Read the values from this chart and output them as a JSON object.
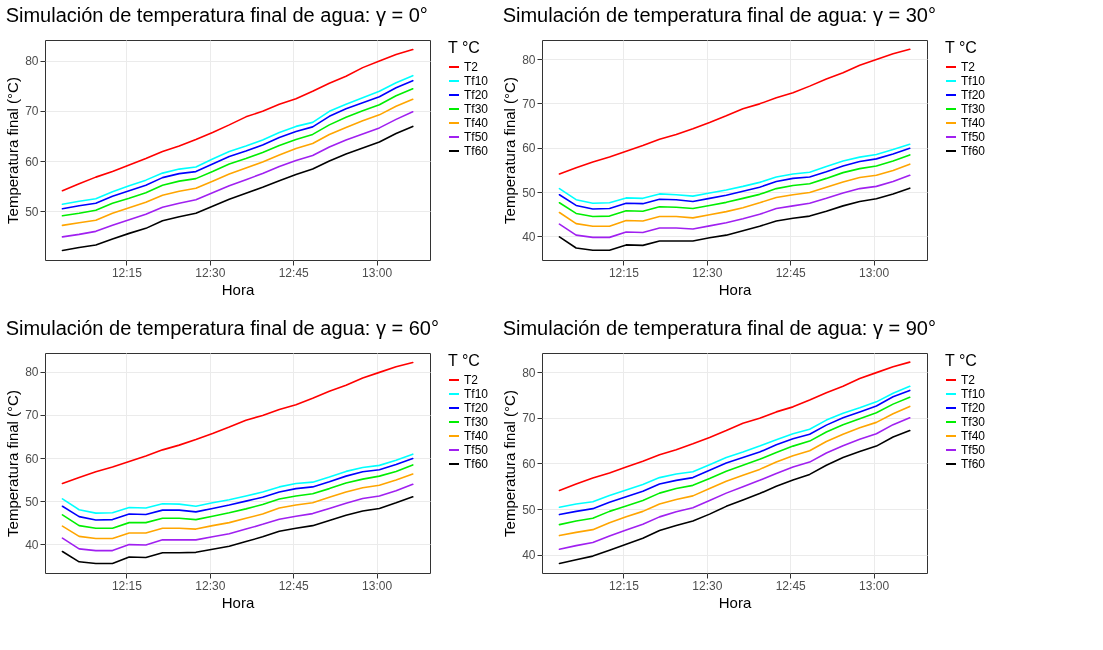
{
  "chart_data": [
    {
      "type": "line",
      "title": "Simulación de temperatura final de agua:  γ = 0°",
      "xlabel": "Hora",
      "ylabel": "Temperatura final (°C)",
      "legend_title": "T °C",
      "grid": true,
      "legend": "right",
      "x": [
        12.0583,
        12.1083,
        12.1583,
        12.2083,
        12.2583,
        12.3083,
        12.3583,
        12.4083,
        12.4583,
        12.5083,
        12.5583,
        12.6083,
        12.6583,
        12.7083,
        12.7583,
        12.8083,
        12.8583,
        12.9083,
        12.9583,
        13.0083,
        13.0583,
        13.1083
      ],
      "xlim": [
        12.006,
        13.16
      ],
      "xticks": [
        {
          "value": 12.25,
          "label": "12:15"
        },
        {
          "value": 12.5,
          "label": "12:30"
        },
        {
          "value": 12.75,
          "label": "12:45"
        },
        {
          "value": 13.0,
          "label": "13:00"
        }
      ],
      "ylim": [
        40.3,
        84.1
      ],
      "yticks": [
        50,
        60,
        70,
        80
      ],
      "series": [
        {
          "name": "T2",
          "color": "#ff0000",
          "values": [
            54.1,
            55.5,
            56.8,
            57.9,
            59.2,
            60.5,
            61.9,
            63.0,
            64.3,
            65.7,
            67.2,
            68.8,
            69.9,
            71.3,
            72.4,
            73.9,
            75.5,
            76.9,
            78.6,
            79.9,
            81.2,
            82.2
          ]
        },
        {
          "name": "Tf10",
          "color": "#00ffff",
          "values": [
            51.4,
            52.0,
            52.5,
            53.9,
            55.1,
            56.2,
            57.6,
            58.4,
            58.8,
            60.4,
            61.9,
            63.0,
            64.2,
            65.7,
            66.9,
            67.7,
            69.9,
            71.3,
            72.6,
            73.9,
            75.6,
            77.0
          ]
        },
        {
          "name": "Tf20",
          "color": "#0000ff",
          "values": [
            50.5,
            51.1,
            51.6,
            53.0,
            54.1,
            55.2,
            56.7,
            57.5,
            57.9,
            59.4,
            60.9,
            62.0,
            63.2,
            64.7,
            65.9,
            66.8,
            68.9,
            70.4,
            71.6,
            72.8,
            74.6,
            76.0
          ]
        },
        {
          "name": "Tf30",
          "color": "#00ee00",
          "values": [
            49.1,
            49.6,
            50.2,
            51.6,
            52.6,
            53.7,
            55.2,
            56.0,
            56.5,
            57.9,
            59.4,
            60.5,
            61.7,
            63.1,
            64.3,
            65.3,
            67.2,
            68.7,
            70.0,
            71.2,
            73.0,
            74.4
          ]
        },
        {
          "name": "Tf40",
          "color": "#ffa500",
          "values": [
            47.2,
            47.7,
            48.2,
            49.6,
            50.7,
            51.8,
            53.2,
            54.0,
            54.6,
            56.0,
            57.4,
            58.6,
            59.8,
            61.2,
            62.5,
            63.5,
            65.3,
            66.7,
            68.0,
            69.2,
            70.9,
            72.3
          ]
        },
        {
          "name": "Tf50",
          "color": "#a020f0",
          "values": [
            44.9,
            45.4,
            46.0,
            47.2,
            48.3,
            49.4,
            50.8,
            51.6,
            52.3,
            53.7,
            55.1,
            56.3,
            57.5,
            58.9,
            60.1,
            61.1,
            62.8,
            64.2,
            65.4,
            66.6,
            68.3,
            69.8
          ]
        },
        {
          "name": "Tf60",
          "color": "#000000",
          "values": [
            42.2,
            42.8,
            43.3,
            44.5,
            45.6,
            46.6,
            48.1,
            48.9,
            49.6,
            51.0,
            52.4,
            53.6,
            54.8,
            56.1,
            57.3,
            58.4,
            60.0,
            61.4,
            62.6,
            63.8,
            65.5,
            66.9
          ]
        }
      ]
    },
    {
      "type": "line",
      "title": "Simulación de temperatura final de agua:  γ = 30°",
      "xlabel": "Hora",
      "ylabel": "Temperatura final (°C)",
      "legend_title": "T °C",
      "grid": true,
      "legend": "right",
      "x": [
        12.0583,
        12.1083,
        12.1583,
        12.2083,
        12.2583,
        12.3083,
        12.3583,
        12.4083,
        12.4583,
        12.5083,
        12.5583,
        12.6083,
        12.6583,
        12.7083,
        12.7583,
        12.8083,
        12.8583,
        12.9083,
        12.9583,
        13.0083,
        13.0583,
        13.1083
      ],
      "xlim": [
        12.006,
        13.16
      ],
      "xticks": [
        {
          "value": 12.25,
          "label": "12:15"
        },
        {
          "value": 12.5,
          "label": "12:30"
        },
        {
          "value": 12.75,
          "label": "12:45"
        },
        {
          "value": 13.0,
          "label": "13:00"
        }
      ],
      "ylim": [
        34.7,
        84.3
      ],
      "yticks": [
        40,
        50,
        60,
        70,
        80
      ],
      "series": [
        {
          "name": "T2",
          "color": "#ff0000",
          "values": [
            54.1,
            55.5,
            56.8,
            57.9,
            59.2,
            60.5,
            61.9,
            63.0,
            64.3,
            65.7,
            67.2,
            68.8,
            69.9,
            71.3,
            72.4,
            73.9,
            75.5,
            76.9,
            78.6,
            79.9,
            81.2,
            82.2
          ]
        },
        {
          "name": "Tf10",
          "color": "#00ffff",
          "values": [
            50.8,
            48.3,
            47.5,
            47.6,
            48.7,
            48.6,
            49.6,
            49.4,
            49.1,
            49.8,
            50.5,
            51.3,
            52.2,
            53.4,
            54.1,
            54.5,
            55.8,
            57.0,
            57.9,
            58.5,
            59.6,
            60.8
          ]
        },
        {
          "name": "Tf20",
          "color": "#0000ff",
          "values": [
            49.4,
            47.0,
            46.2,
            46.3,
            47.5,
            47.4,
            48.4,
            48.3,
            47.9,
            48.6,
            49.3,
            50.2,
            51.1,
            52.4,
            53.1,
            53.4,
            54.6,
            55.9,
            56.9,
            57.5,
            58.6,
            59.9
          ]
        },
        {
          "name": "Tf30",
          "color": "#00ee00",
          "values": [
            47.6,
            45.2,
            44.5,
            44.6,
            45.8,
            45.7,
            46.7,
            46.6,
            46.3,
            47.0,
            47.7,
            48.6,
            49.5,
            50.8,
            51.5,
            51.9,
            53.1,
            54.4,
            55.3,
            55.9,
            57.0,
            58.4
          ]
        },
        {
          "name": "Tf40",
          "color": "#ffa500",
          "values": [
            45.4,
            42.9,
            42.3,
            42.3,
            43.6,
            43.5,
            44.5,
            44.5,
            44.2,
            44.9,
            45.6,
            46.5,
            47.6,
            48.8,
            49.4,
            49.9,
            51.1,
            52.3,
            53.3,
            53.8,
            54.9,
            56.3
          ]
        },
        {
          "name": "Tf50",
          "color": "#a020f0",
          "values": [
            42.8,
            40.3,
            39.8,
            39.8,
            41.0,
            40.9,
            41.9,
            41.9,
            41.7,
            42.4,
            43.1,
            44.0,
            45.0,
            46.3,
            46.9,
            47.5,
            48.6,
            49.8,
            50.8,
            51.3,
            52.4,
            53.8
          ]
        },
        {
          "name": "Tf60",
          "color": "#000000",
          "values": [
            39.9,
            37.4,
            36.9,
            36.9,
            38.1,
            38.0,
            39.0,
            39.0,
            39.0,
            39.7,
            40.3,
            41.3,
            42.3,
            43.5,
            44.1,
            44.6,
            45.7,
            46.9,
            47.9,
            48.5,
            49.6,
            50.9
          ]
        }
      ]
    },
    {
      "type": "line",
      "title": "Simulación de temperatura final de agua:  γ = 60°",
      "xlabel": "Hora",
      "ylabel": "Temperatura final (°C)",
      "legend_title": "T °C",
      "grid": true,
      "legend": "right",
      "x": [
        12.0583,
        12.1083,
        12.1583,
        12.2083,
        12.2583,
        12.3083,
        12.3583,
        12.4083,
        12.4583,
        12.5083,
        12.5583,
        12.6083,
        12.6583,
        12.7083,
        12.7583,
        12.8083,
        12.8583,
        12.9083,
        12.9583,
        13.0083,
        13.0583,
        13.1083
      ],
      "xlim": [
        12.006,
        13.16
      ],
      "xticks": [
        {
          "value": 12.25,
          "label": "12:15"
        },
        {
          "value": 12.5,
          "label": "12:30"
        },
        {
          "value": 12.75,
          "label": "12:45"
        },
        {
          "value": 13.0,
          "label": "13:00"
        }
      ],
      "ylim": [
        33.3,
        84.4
      ],
      "yticks": [
        40,
        50,
        60,
        70,
        80
      ],
      "series": [
        {
          "name": "T2",
          "color": "#ff0000",
          "values": [
            54.1,
            55.5,
            56.8,
            57.9,
            59.2,
            60.5,
            61.9,
            63.0,
            64.3,
            65.7,
            67.2,
            68.8,
            69.9,
            71.3,
            72.4,
            73.9,
            75.5,
            76.9,
            78.6,
            79.9,
            81.2,
            82.2
          ]
        },
        {
          "name": "Tf10",
          "color": "#00ffff",
          "values": [
            50.5,
            48.0,
            47.2,
            47.3,
            48.5,
            48.4,
            49.4,
            49.3,
            48.8,
            49.6,
            50.3,
            51.2,
            52.1,
            53.3,
            54.1,
            54.4,
            55.6,
            56.9,
            57.8,
            58.3,
            59.5,
            60.9
          ]
        },
        {
          "name": "Tf20",
          "color": "#0000ff",
          "values": [
            48.8,
            46.4,
            45.6,
            45.7,
            47.0,
            46.9,
            47.9,
            47.9,
            47.5,
            48.3,
            49.1,
            50.0,
            50.9,
            52.1,
            52.9,
            53.3,
            54.5,
            55.8,
            56.8,
            57.3,
            58.5,
            59.9
          ]
        },
        {
          "name": "Tf30",
          "color": "#00ee00",
          "values": [
            46.8,
            44.3,
            43.7,
            43.7,
            45.0,
            45.0,
            46.0,
            46.0,
            45.7,
            46.5,
            47.3,
            48.2,
            49.2,
            50.5,
            51.2,
            51.7,
            52.9,
            54.2,
            55.1,
            55.8,
            56.9,
            58.4
          ]
        },
        {
          "name": "Tf40",
          "color": "#ffa500",
          "values": [
            44.2,
            41.8,
            41.3,
            41.3,
            42.6,
            42.6,
            43.7,
            43.7,
            43.5,
            44.3,
            45.0,
            46.0,
            47.0,
            48.4,
            49.1,
            49.6,
            50.9,
            52.1,
            53.1,
            53.7,
            54.9,
            56.3
          ]
        },
        {
          "name": "Tf50",
          "color": "#a020f0",
          "values": [
            41.4,
            38.9,
            38.5,
            38.5,
            39.9,
            39.8,
            41.0,
            41.0,
            41.0,
            41.7,
            42.4,
            43.5,
            44.6,
            45.8,
            46.5,
            47.1,
            48.3,
            49.5,
            50.6,
            51.2,
            52.4,
            53.9
          ]
        },
        {
          "name": "Tf60",
          "color": "#000000",
          "values": [
            38.3,
            35.9,
            35.5,
            35.5,
            37.0,
            36.9,
            38.0,
            38.0,
            38.1,
            38.8,
            39.5,
            40.6,
            41.7,
            43.0,
            43.7,
            44.3,
            45.5,
            46.7,
            47.7,
            48.3,
            49.6,
            51.0
          ]
        }
      ]
    },
    {
      "type": "line",
      "title": "Simulación de temperatura final de agua:  γ = 90°",
      "xlabel": "Hora",
      "ylabel": "Temperatura final (°C)",
      "legend_title": "T °C",
      "grid": true,
      "legend": "right",
      "x": [
        12.0583,
        12.1083,
        12.1583,
        12.2083,
        12.2583,
        12.3083,
        12.3583,
        12.4083,
        12.4583,
        12.5083,
        12.5583,
        12.6083,
        12.6583,
        12.7083,
        12.7583,
        12.8083,
        12.8583,
        12.9083,
        12.9583,
        13.0083,
        13.0583,
        13.1083
      ],
      "xlim": [
        12.006,
        13.16
      ],
      "xticks": [
        {
          "value": 12.25,
          "label": "12:15"
        },
        {
          "value": 12.5,
          "label": "12:30"
        },
        {
          "value": 12.75,
          "label": "12:45"
        },
        {
          "value": 13.0,
          "label": "13:00"
        }
      ],
      "ylim": [
        36.0,
        84.2
      ],
      "yticks": [
        40,
        50,
        60,
        70,
        80
      ],
      "series": [
        {
          "name": "T2",
          "color": "#ff0000",
          "values": [
            54.1,
            55.5,
            56.8,
            57.9,
            59.2,
            60.5,
            61.9,
            63.0,
            64.3,
            65.7,
            67.2,
            68.8,
            69.9,
            71.3,
            72.4,
            73.9,
            75.5,
            76.9,
            78.6,
            79.9,
            81.2,
            82.2
          ]
        },
        {
          "name": "Tf10",
          "color": "#00ffff",
          "values": [
            50.4,
            51.1,
            51.6,
            53.0,
            54.2,
            55.4,
            56.9,
            57.7,
            58.2,
            59.7,
            61.3,
            62.5,
            63.8,
            65.2,
            66.5,
            67.5,
            69.5,
            71.0,
            72.2,
            73.5,
            75.4,
            76.9
          ]
        },
        {
          "name": "Tf20",
          "color": "#0000ff",
          "values": [
            48.8,
            49.5,
            50.1,
            51.5,
            52.7,
            53.9,
            55.5,
            56.3,
            56.9,
            58.5,
            60.1,
            61.3,
            62.5,
            64.1,
            65.4,
            66.4,
            68.4,
            70.0,
            71.3,
            72.6,
            74.6,
            76.0
          ]
        },
        {
          "name": "Tf30",
          "color": "#00ee00",
          "values": [
            46.6,
            47.4,
            48.0,
            49.5,
            50.7,
            51.9,
            53.5,
            54.5,
            55.2,
            56.7,
            58.3,
            59.6,
            60.9,
            62.4,
            63.8,
            64.9,
            66.9,
            68.5,
            69.8,
            71.1,
            73.0,
            74.5
          ]
        },
        {
          "name": "Tf40",
          "color": "#ffa500",
          "values": [
            44.2,
            44.9,
            45.5,
            47.0,
            48.3,
            49.5,
            51.1,
            52.1,
            52.9,
            54.5,
            56.1,
            57.4,
            58.7,
            60.3,
            61.7,
            62.8,
            64.8,
            66.4,
            67.8,
            69.0,
            70.9,
            72.5
          ]
        },
        {
          "name": "Tf50",
          "color": "#a020f0",
          "values": [
            41.2,
            42.0,
            42.7,
            44.1,
            45.4,
            46.7,
            48.3,
            49.4,
            50.3,
            51.9,
            53.5,
            54.9,
            56.3,
            57.8,
            59.2,
            60.3,
            62.3,
            63.9,
            65.3,
            66.5,
            68.5,
            70.0
          ]
        },
        {
          "name": "Tf60",
          "color": "#000000",
          "values": [
            38.1,
            38.9,
            39.7,
            41.0,
            42.3,
            43.6,
            45.3,
            46.4,
            47.4,
            48.9,
            50.6,
            52.0,
            53.4,
            55.0,
            56.4,
            57.6,
            59.6,
            61.3,
            62.6,
            63.8,
            65.8,
            67.2
          ]
        }
      ]
    }
  ]
}
